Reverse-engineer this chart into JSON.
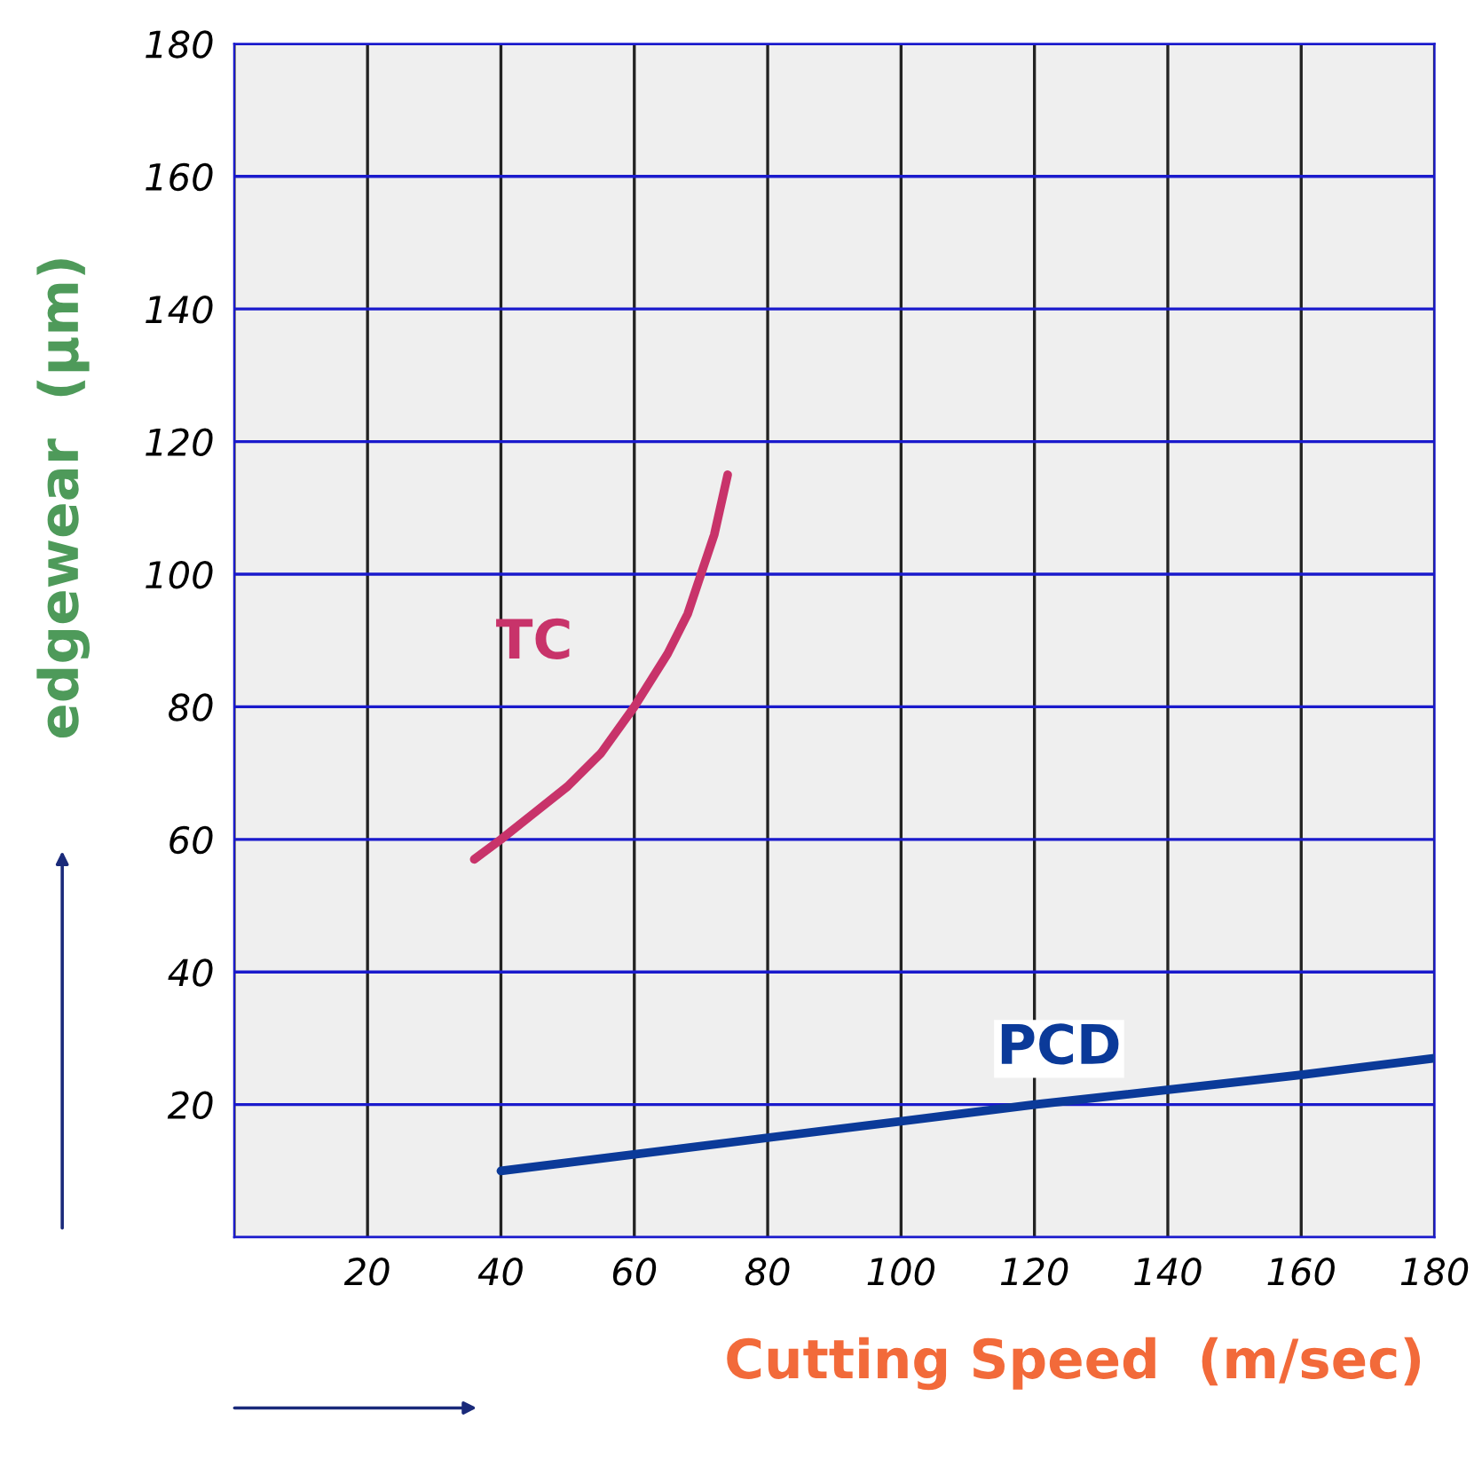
{
  "chart_data": {
    "type": "line",
    "xlabel": "Cutting Speed  (m/sec)",
    "ylabel": "edgewear  (µm)",
    "xlim": [
      0,
      180
    ],
    "ylim": [
      0,
      180
    ],
    "xticks": [
      {
        "value": 0,
        "label": null
      },
      20,
      40,
      60,
      80,
      100,
      120,
      140,
      160,
      180
    ],
    "yticks": [
      {
        "value": 0,
        "label": null
      },
      20,
      40,
      60,
      80,
      100,
      120,
      140,
      160,
      180
    ],
    "grid": true,
    "legend": false,
    "marker": "none",
    "line_style": "solid",
    "series": [
      {
        "name": "TC",
        "color": "#c8336a",
        "x": [
          36,
          40,
          45,
          50,
          55,
          60,
          65,
          68,
          70,
          72,
          74
        ],
        "values": [
          57,
          60,
          64,
          68,
          73,
          80,
          88,
          94,
          100,
          106,
          115
        ]
      },
      {
        "name": "PCD",
        "color": "#0b3a99",
        "x": [
          40,
          80,
          120,
          160,
          180
        ],
        "values": [
          10,
          15,
          20,
          24.5,
          27
        ]
      }
    ]
  }
}
